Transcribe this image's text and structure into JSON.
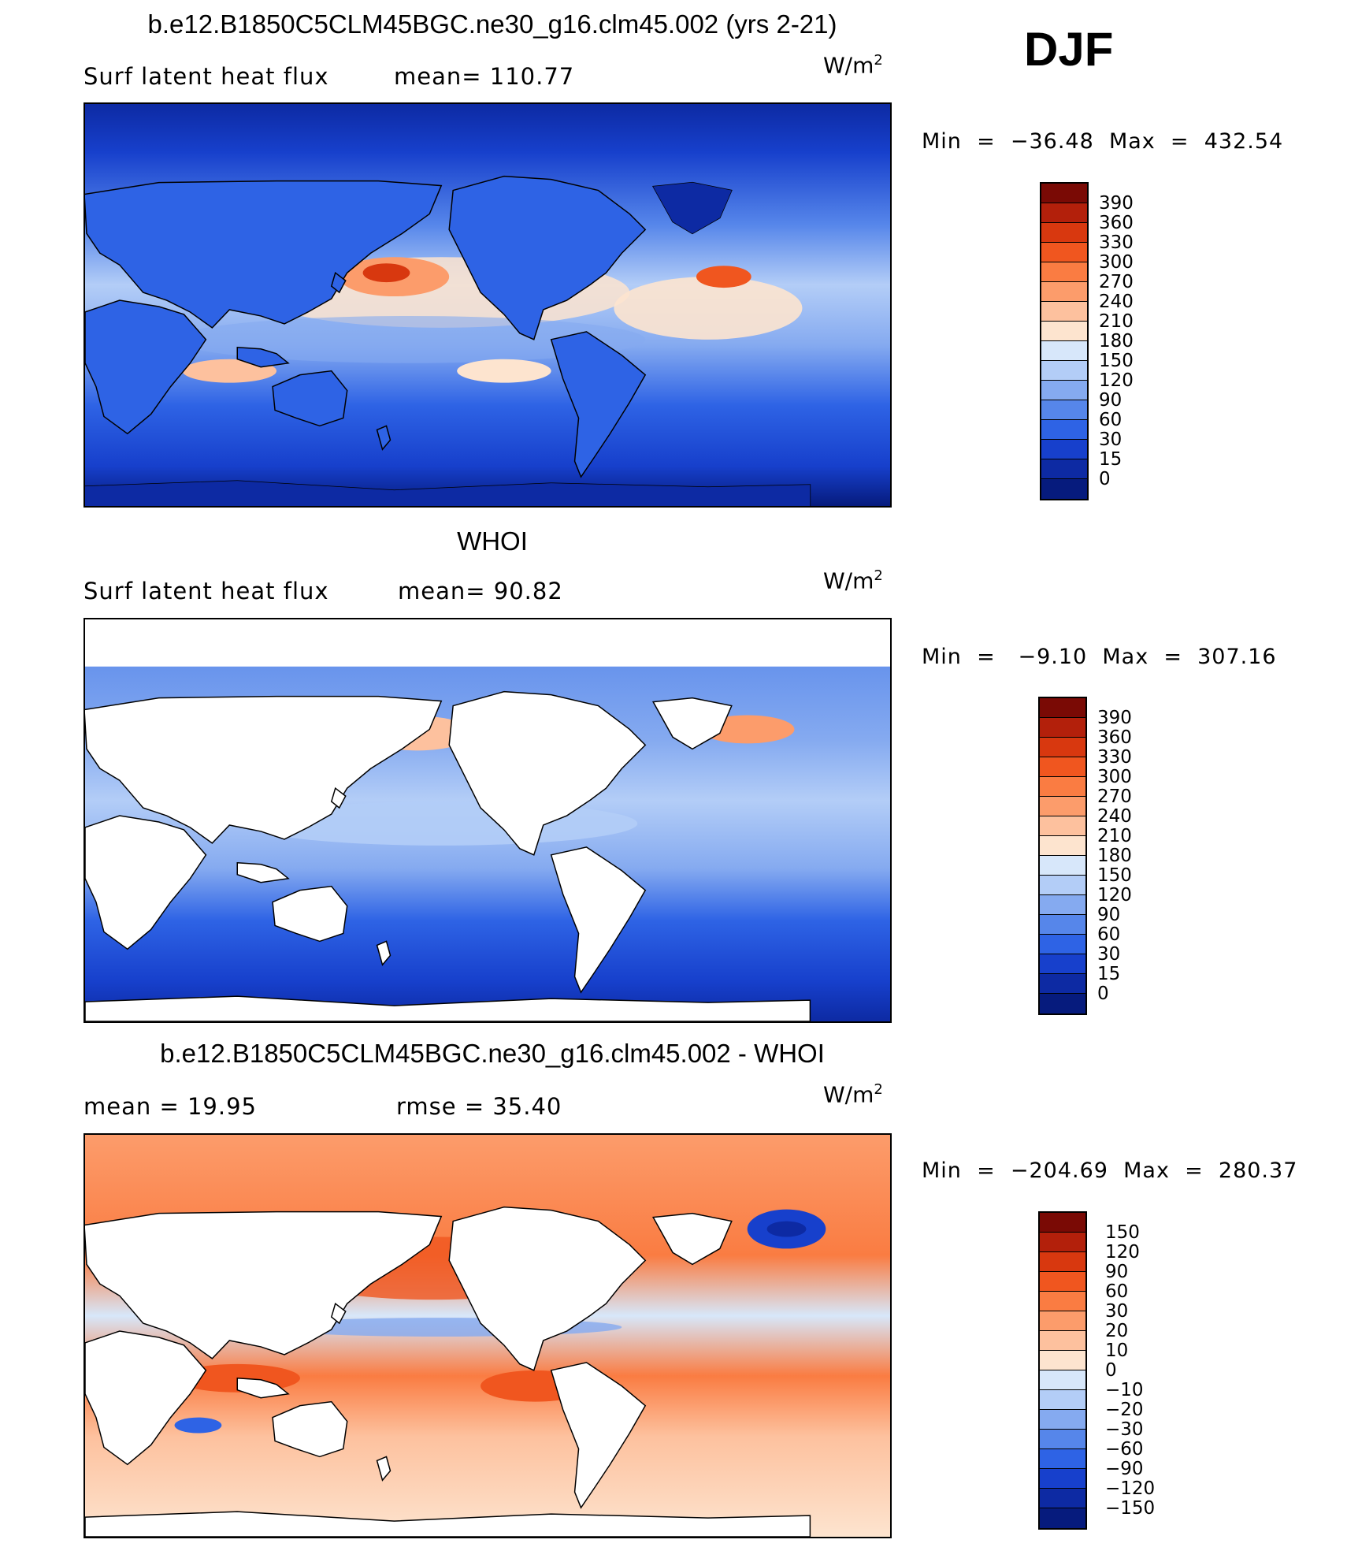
{
  "season": "DJF",
  "chart_data": [
    {
      "type": "heatmap",
      "title": "b.e12.B1850C5CLM45BGC.ne30_g16.clm45.002 (yrs 2-21)",
      "left_label": "Surf latent heat flux",
      "stat_text": "mean=  110.77",
      "units_base": "W/m",
      "units_exp": "2",
      "minmax": "Min  =  −36.48  Max  =  432.54",
      "colorbar_labels": [
        "390",
        "360",
        "330",
        "300",
        "270",
        "240",
        "210",
        "180",
        "150",
        "120",
        "90",
        "60",
        "30",
        "15",
        "0"
      ],
      "colorbar_colors": [
        "#7a0a05",
        "#b3200b",
        "#d8380f",
        "#f0561f",
        "#fa7c42",
        "#fc9c6b",
        "#fdc19e",
        "#fde4cf",
        "#d7e7fa",
        "#b3cdf7",
        "#85aaf0",
        "#5686ea",
        "#2e63e5",
        "#1740cc",
        "#0d2aa3",
        "#061b7d"
      ]
    },
    {
      "type": "heatmap",
      "title": "WHOI",
      "left_label": "Surf latent heat flux",
      "stat_text": "mean=   90.82",
      "units_base": "W/m",
      "units_exp": "2",
      "minmax": "Min  =   −9.10  Max  =  307.16",
      "colorbar_labels": [
        "390",
        "360",
        "330",
        "300",
        "270",
        "240",
        "210",
        "180",
        "150",
        "120",
        "90",
        "60",
        "30",
        "15",
        "0"
      ],
      "colorbar_colors": [
        "#7a0a05",
        "#b3200b",
        "#d8380f",
        "#f0561f",
        "#fa7c42",
        "#fc9c6b",
        "#fdc19e",
        "#fde4cf",
        "#d7e7fa",
        "#b3cdf7",
        "#85aaf0",
        "#5686ea",
        "#2e63e5",
        "#1740cc",
        "#0d2aa3",
        "#061b7d"
      ]
    },
    {
      "type": "heatmap",
      "title": "b.e12.B1850C5CLM45BGC.ne30_g16.clm45.002 - WHOI",
      "left_label": "mean =    19.95",
      "stat_text": "rmse  =    35.40",
      "units_base": "W/m",
      "units_exp": "2",
      "minmax": "Min  =  −204.69  Max  =  280.37",
      "colorbar_labels": [
        "150",
        "120",
        "90",
        "60",
        "30",
        "20",
        "10",
        "0",
        "−10",
        "−20",
        "−30",
        "−60",
        "−90",
        "−120",
        "−150"
      ],
      "colorbar_colors": [
        "#7a0a05",
        "#b3200b",
        "#d8380f",
        "#f0561f",
        "#fa7c42",
        "#fc9c6b",
        "#fdc19e",
        "#fde4cf",
        "#d7e7fa",
        "#b3cdf7",
        "#85aaf0",
        "#5686ea",
        "#2e63e5",
        "#1740cc",
        "#0d2aa3",
        "#061b7d"
      ]
    }
  ]
}
